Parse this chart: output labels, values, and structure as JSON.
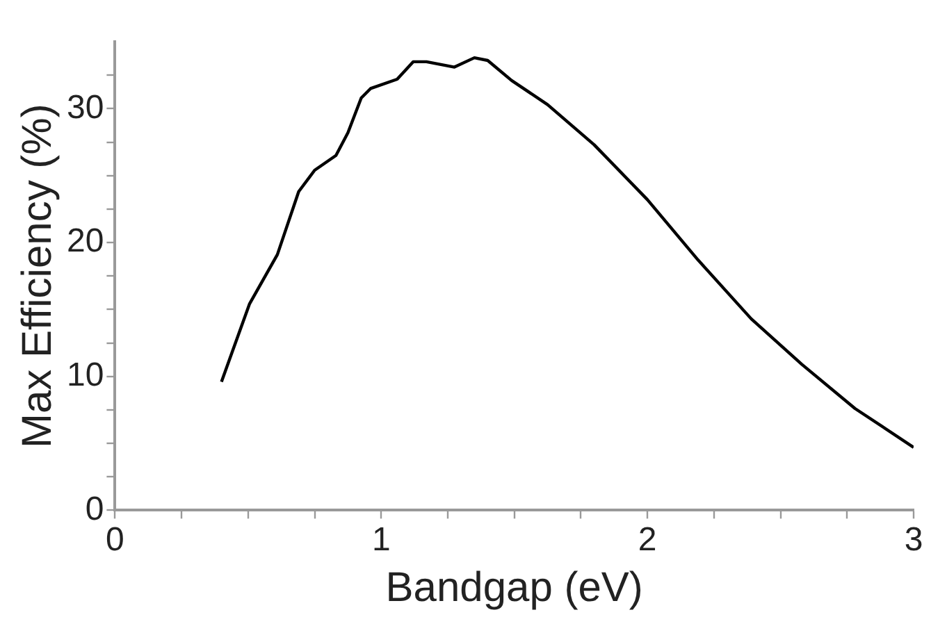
{
  "chart_data": {
    "type": "line",
    "xlabel": "Bandgap (eV)",
    "ylabel": "Max Efficiency (%)",
    "x": [
      0.4,
      0.505,
      0.61,
      0.69,
      0.75,
      0.83,
      0.875,
      0.925,
      0.96,
      1.06,
      1.12,
      1.17,
      1.275,
      1.35,
      1.4,
      1.49,
      1.625,
      1.8,
      2.0,
      2.19,
      2.39,
      2.58,
      2.78,
      3.0
    ],
    "series": [
      {
        "color": "#000000",
        "values": [
          9.6,
          15.4,
          19.1,
          23.8,
          25.4,
          26.5,
          28.2,
          30.8,
          31.5,
          32.2,
          33.5,
          33.5,
          33.1,
          33.8,
          33.6,
          32.1,
          30.3,
          27.3,
          23.2,
          18.7,
          14.3,
          10.9,
          7.6,
          4.7
        ]
      }
    ],
    "xlim": [
      0,
      3
    ],
    "ylim": [
      0,
      35
    ],
    "xticks": [
      0,
      {
        "value": 0.25,
        "label": null
      },
      {
        "value": 0.5,
        "label": null
      },
      {
        "value": 0.75,
        "label": null
      },
      1,
      {
        "value": 1.25,
        "label": null
      },
      {
        "value": 1.5,
        "label": null
      },
      {
        "value": 1.75,
        "label": null
      },
      2,
      {
        "value": 2.25,
        "label": null
      },
      {
        "value": 2.5,
        "label": null
      },
      {
        "value": 2.75,
        "label": null
      },
      3
    ],
    "yticks": [
      0,
      {
        "value": 2.5,
        "label": null
      },
      {
        "value": 5,
        "label": null
      },
      {
        "value": 7.5,
        "label": null
      },
      10,
      {
        "value": 12.5,
        "label": null
      },
      {
        "value": 15,
        "label": null
      },
      {
        "value": 17.5,
        "label": null
      },
      20,
      {
        "value": 22.5,
        "label": null
      },
      {
        "value": 25,
        "label": null
      },
      {
        "value": 27.5,
        "label": null
      },
      30,
      {
        "value": 32.5,
        "label": null
      }
    ],
    "grid": false,
    "legend": false,
    "marker": "none",
    "line_style": "solid"
  }
}
